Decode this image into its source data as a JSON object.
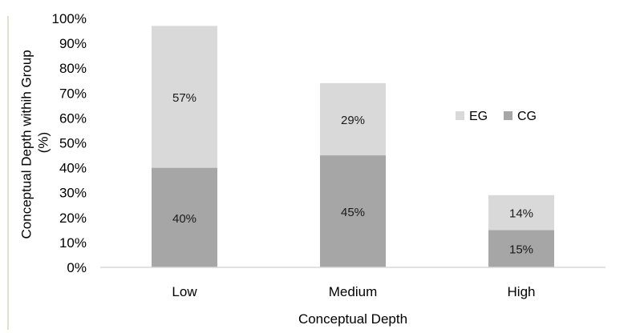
{
  "chart_data": {
    "type": "bar",
    "stacked": true,
    "categories": [
      "Low",
      "Medium",
      "High"
    ],
    "series": [
      {
        "name": "CG",
        "values": [
          40,
          45,
          15
        ],
        "labels": [
          "40%",
          "45%",
          "15%"
        ],
        "color": "#a6a6a6"
      },
      {
        "name": "EG",
        "values": [
          57,
          29,
          14
        ],
        "labels": [
          "57%",
          "29%",
          "14%"
        ],
        "color": "#d9d9d9"
      }
    ],
    "xlabel": "Conceptual Depth",
    "ylabel_lines": [
      "Conceptual Depth withih Group",
      "(%)"
    ],
    "ylim": [
      0,
      100
    ],
    "yticks": [
      0,
      10,
      20,
      30,
      40,
      50,
      60,
      70,
      80,
      90,
      100
    ],
    "ytick_labels": [
      "0%",
      "10%",
      "20%",
      "30%",
      "40%",
      "50%",
      "60%",
      "70%",
      "80%",
      "90%",
      "100%"
    ],
    "grid": false,
    "legend": {
      "placement": "right",
      "entries": [
        "EG",
        "CG"
      ]
    }
  }
}
